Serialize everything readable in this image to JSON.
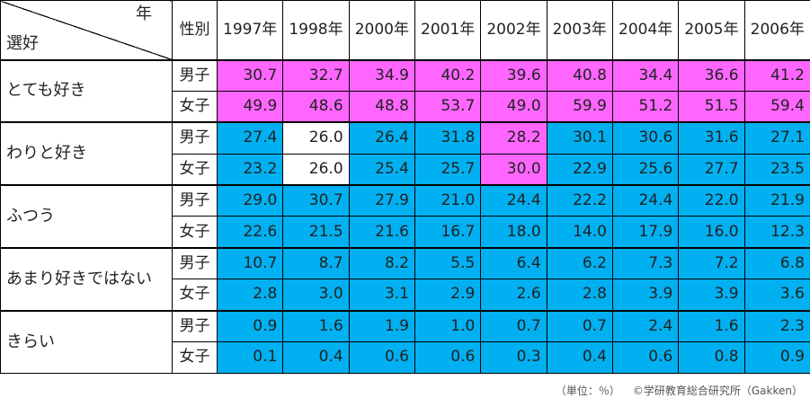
{
  "header": {
    "year_label": "年",
    "preference_label": "選好",
    "sex_label": "性別"
  },
  "colors": {
    "blue": "#00b0f0",
    "pink": "#ff66ff",
    "white": "#ffffff"
  },
  "footer": {
    "unit": "（単位：％）",
    "source": "©学研教育総合研究所（Gakken）"
  },
  "chart_data": {
    "type": "table",
    "years": [
      "1997年",
      "1998年",
      "2000年",
      "2001年",
      "2002年",
      "2003年",
      "2004年",
      "2005年",
      "2006年"
    ],
    "groups": [
      {
        "label": "とても好き",
        "rows": [
          {
            "sex": "男子",
            "values": [
              "30.7",
              "32.7",
              "34.9",
              "40.2",
              "39.6",
              "40.8",
              "34.4",
              "36.6",
              "41.2"
            ],
            "colors": [
              "pink",
              "pink",
              "pink",
              "pink",
              "pink",
              "pink",
              "pink",
              "pink",
              "pink"
            ]
          },
          {
            "sex": "女子",
            "values": [
              "49.9",
              "48.6",
              "48.8",
              "53.7",
              "49.0",
              "59.9",
              "51.2",
              "51.5",
              "59.4"
            ],
            "colors": [
              "pink",
              "pink",
              "pink",
              "pink",
              "pink",
              "pink",
              "pink",
              "pink",
              "pink"
            ]
          }
        ]
      },
      {
        "label": "わりと好き",
        "rows": [
          {
            "sex": "男子",
            "values": [
              "27.4",
              "26.0",
              "26.4",
              "31.8",
              "28.2",
              "30.1",
              "30.6",
              "31.6",
              "27.1"
            ],
            "colors": [
              "blue",
              "white",
              "blue",
              "blue",
              "pink",
              "blue",
              "blue",
              "blue",
              "blue"
            ]
          },
          {
            "sex": "女子",
            "values": [
              "23.2",
              "26.0",
              "25.4",
              "25.7",
              "30.0",
              "22.9",
              "25.6",
              "27.7",
              "23.5"
            ],
            "colors": [
              "blue",
              "white",
              "blue",
              "blue",
              "pink",
              "blue",
              "blue",
              "blue",
              "blue"
            ]
          }
        ]
      },
      {
        "label": "ふつう",
        "rows": [
          {
            "sex": "男子",
            "values": [
              "29.0",
              "30.7",
              "27.9",
              "21.0",
              "24.4",
              "22.2",
              "24.4",
              "22.0",
              "21.9"
            ],
            "colors": [
              "blue",
              "blue",
              "blue",
              "blue",
              "blue",
              "blue",
              "blue",
              "blue",
              "blue"
            ]
          },
          {
            "sex": "女子",
            "values": [
              "22.6",
              "21.5",
              "21.6",
              "16.7",
              "18.0",
              "14.0",
              "17.9",
              "16.0",
              "12.3"
            ],
            "colors": [
              "blue",
              "blue",
              "blue",
              "blue",
              "blue",
              "blue",
              "blue",
              "blue",
              "blue"
            ]
          }
        ]
      },
      {
        "label": "あまり好きではない",
        "rows": [
          {
            "sex": "男子",
            "values": [
              "10.7",
              "8.7",
              "8.2",
              "5.5",
              "6.4",
              "6.2",
              "7.3",
              "7.2",
              "6.8"
            ],
            "colors": [
              "blue",
              "blue",
              "blue",
              "blue",
              "blue",
              "blue",
              "blue",
              "blue",
              "blue"
            ]
          },
          {
            "sex": "女子",
            "values": [
              "2.8",
              "3.0",
              "3.1",
              "2.9",
              "2.6",
              "2.8",
              "3.9",
              "3.9",
              "3.6"
            ],
            "colors": [
              "blue",
              "blue",
              "blue",
              "blue",
              "blue",
              "blue",
              "blue",
              "blue",
              "blue"
            ]
          }
        ]
      },
      {
        "label": "きらい",
        "rows": [
          {
            "sex": "男子",
            "values": [
              "0.9",
              "1.6",
              "1.9",
              "1.0",
              "0.7",
              "0.7",
              "2.4",
              "1.6",
              "2.3"
            ],
            "colors": [
              "blue",
              "blue",
              "blue",
              "blue",
              "blue",
              "blue",
              "blue",
              "blue",
              "blue"
            ]
          },
          {
            "sex": "女子",
            "values": [
              "0.1",
              "0.4",
              "0.6",
              "0.6",
              "0.3",
              "0.4",
              "0.6",
              "0.8",
              "0.9"
            ],
            "colors": [
              "blue",
              "blue",
              "blue",
              "blue",
              "blue",
              "blue",
              "blue",
              "blue",
              "blue"
            ]
          }
        ]
      }
    ]
  }
}
